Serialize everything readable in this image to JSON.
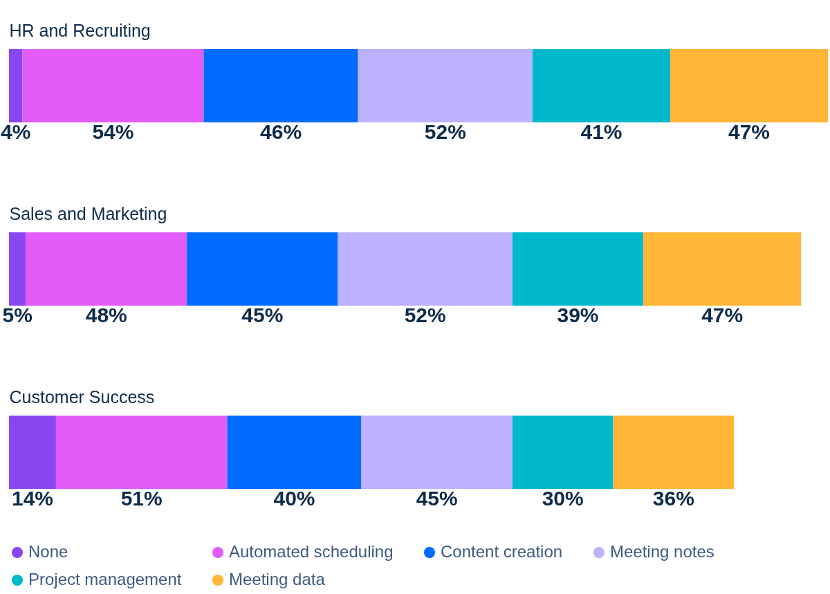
{
  "chart_data": {
    "type": "bar",
    "orientation": "horizontal",
    "stacked": true,
    "categories": [
      "HR and Recruiting",
      "Sales and Marketing",
      "Customer Success"
    ],
    "series": [
      {
        "name": "None",
        "color": "#8a47f0",
        "values": [
          4,
          5,
          14
        ],
        "value_labels": [
          "4%",
          "5%",
          "14%"
        ]
      },
      {
        "name": "Automated scheduling",
        "color": "#e35cfa",
        "values": [
          54,
          48,
          51
        ],
        "value_labels": [
          "54%",
          "48%",
          "51%"
        ]
      },
      {
        "name": "Content creation",
        "color": "#006bff",
        "values": [
          46,
          45,
          40
        ],
        "value_labels": [
          "46%",
          "45%",
          "40%"
        ]
      },
      {
        "name": "Meeting notes",
        "color": "#bdb2ff",
        "values": [
          52,
          52,
          45
        ],
        "value_labels": [
          "52%",
          "52%",
          "45%"
        ]
      },
      {
        "name": "Project management",
        "color": "#00b8cc",
        "values": [
          41,
          39,
          30
        ],
        "value_labels": [
          "41%",
          "39%",
          "30%"
        ]
      },
      {
        "name": "Meeting data",
        "color": "#ffb636",
        "values": [
          47,
          47,
          36
        ],
        "value_labels": [
          "47%",
          "47%",
          "36%"
        ]
      }
    ],
    "legend": "bottom",
    "tick_labels": "y"
  }
}
